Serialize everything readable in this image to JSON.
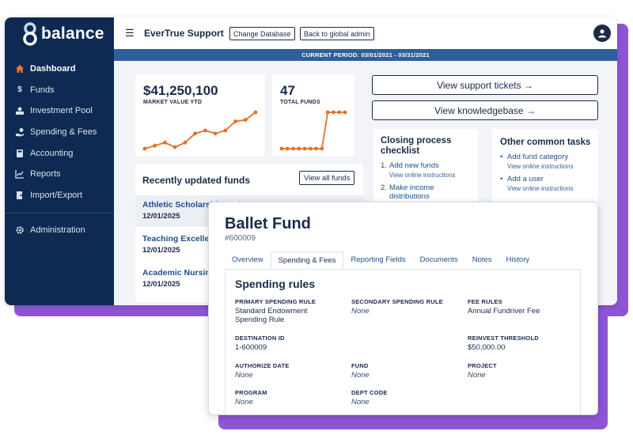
{
  "brand": {
    "name": "balance"
  },
  "sidebar": {
    "items": [
      {
        "label": "Dashboard",
        "icon": "home-icon",
        "active": true
      },
      {
        "label": "Funds",
        "icon": "dollar-icon"
      },
      {
        "label": "Investment Pool",
        "icon": "investment-icon"
      },
      {
        "label": "Spending & Fees",
        "icon": "hand-money-icon"
      },
      {
        "label": "Accounting",
        "icon": "calculator-icon"
      },
      {
        "label": "Reports",
        "icon": "chart-icon"
      },
      {
        "label": "Import/Export",
        "icon": "import-export-icon"
      }
    ],
    "admin": {
      "label": "Administration",
      "icon": "gear-icon"
    }
  },
  "header": {
    "org_name": "EverTrue Support",
    "change_db_label": "Change Database",
    "global_admin_label": "Back to global admin",
    "period": "CURRENT PERIOD: 03/01/2021 - 03/31/2021"
  },
  "stats": {
    "market_value": {
      "value": "$41,250,100",
      "label": "MARKET VALUE YTD"
    },
    "total_funds": {
      "value": "47",
      "label": "TOTAL FUNDS"
    }
  },
  "chart_data": [
    {
      "type": "line",
      "series": [
        {
          "values": [
            2,
            3,
            4,
            2.5,
            4,
            7,
            8,
            7,
            8,
            11,
            11.5,
            14
          ]
        }
      ]
    },
    {
      "type": "line",
      "series": [
        {
          "values": [
            1,
            1,
            1,
            1,
            1,
            1,
            1,
            1,
            14,
            14,
            14,
            14
          ]
        }
      ]
    }
  ],
  "actions": {
    "support_tickets": "View support tickets →",
    "knowledgebase": "View knowledgebase →"
  },
  "closing": {
    "title": "Closing process checklist",
    "items": [
      {
        "num": "1.",
        "label": "Add new funds",
        "sub": "View online instructions"
      },
      {
        "num": "2.",
        "label": "Make income distributions",
        "sub": ""
      }
    ]
  },
  "tasks": {
    "title": "Other common tasks",
    "items": [
      {
        "label": "Add fund category",
        "sub": "View online instructions"
      },
      {
        "label": "Add a user",
        "sub": "View online instructions"
      }
    ]
  },
  "recent": {
    "title": "Recently updated funds",
    "view_all": "View all funds",
    "rows": [
      {
        "name": "Athletic Scholarship Endowment",
        "date": "12/01/2025"
      },
      {
        "name": "Teaching Excellen",
        "date": "12/01/2025"
      },
      {
        "name": "Academic Nursing",
        "date": "12/01/2025"
      }
    ]
  },
  "fund": {
    "name": "Ballet Fund",
    "id": "#600009",
    "tabs": [
      "Overview",
      "Spending & Fees",
      "Reporting Fields",
      "Documents",
      "Notes",
      "History"
    ],
    "active_tab": 1,
    "section_title": "Spending rules",
    "fields": {
      "primary": {
        "label": "PRIMARY SPENDING RULE",
        "value": "Standard Endowment Spending Rule"
      },
      "secondary": {
        "label": "SECONDARY SPENDING RULE",
        "value": "None"
      },
      "fee": {
        "label": "FEE RULES",
        "value": "Annual Fundriver Fee"
      },
      "destination": {
        "label": "DESTINATION ID",
        "value": "1-600009"
      },
      "reinvest": {
        "label": "REINVEST THRESHOLD",
        "value": "$50,000.00"
      },
      "authorize": {
        "label": "AUTHORIZE DATE",
        "value": "None"
      },
      "fundfield": {
        "label": "FUND",
        "value": "None"
      },
      "project": {
        "label": "PROJECT",
        "value": "None"
      },
      "program": {
        "label": "PROGRAM",
        "value": "None"
      },
      "dept": {
        "label": "DEPT CODE",
        "value": "None"
      }
    }
  },
  "colors": {
    "navy": "#0e2a52",
    "accent": "#2f5f9a",
    "line": "#e0722c",
    "purple": "#8f55d6"
  }
}
